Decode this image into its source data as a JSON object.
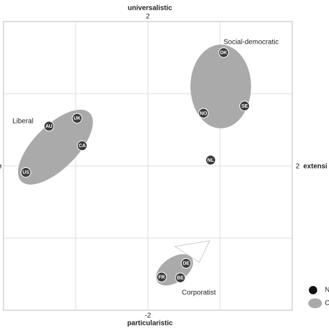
{
  "chart_data": {
    "type": "scatter",
    "top_label": "universalistic",
    "bottom_label": "particularistic",
    "right_label": "extensi",
    "left_label": "e",
    "xlim": [
      -2,
      2
    ],
    "ylim": [
      -2,
      2
    ],
    "xticks": [
      -1,
      0,
      1
    ],
    "yticks": [
      -1,
      0,
      1
    ],
    "axis_tick_labels": {
      "top": 2,
      "bottom": -2,
      "right": 2
    },
    "grid": true,
    "point_color": "#3a3a3a",
    "cluster_color": "#aaaaaa",
    "points": {
      "labels": [
        "DK",
        "NO",
        "SE",
        "NL",
        "UK",
        "AU",
        "CA",
        "US",
        "DE",
        "FR",
        "BE"
      ],
      "x": [
        1.05,
        0.77,
        1.34,
        0.87,
        -0.98,
        -1.37,
        -0.91,
        -1.69,
        0.53,
        0.19,
        0.45
      ],
      "y": [
        1.57,
        0.73,
        0.83,
        0.08,
        0.66,
        0.55,
        0.28,
        -0.09,
        -1.35,
        -1.54,
        -1.55
      ]
    },
    "clusters": [
      {
        "label": "Social-democratic",
        "cx": 1.01,
        "cy": 1.1,
        "rx": 0.42,
        "ry": 0.58,
        "angle": 0
      },
      {
        "label": "Liberal",
        "cx": -1.28,
        "cy": 0.26,
        "rx": 0.67,
        "ry": 0.3,
        "angle": -45
      },
      {
        "label": "Corporatist",
        "cx": 0.37,
        "cy": -1.44,
        "rx": 0.29,
        "ry": 0.17,
        "angle": -35
      }
    ],
    "legend": [
      "N",
      "C"
    ]
  }
}
